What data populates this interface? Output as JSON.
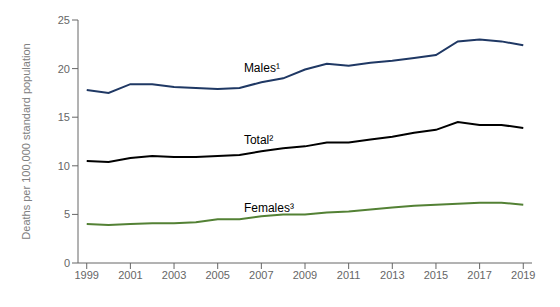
{
  "chart_data": {
    "type": "line",
    "y_label": "Deaths per 100,000 standard population",
    "x": [
      1999,
      2000,
      2001,
      2002,
      2003,
      2004,
      2005,
      2006,
      2007,
      2008,
      2009,
      2010,
      2011,
      2012,
      2013,
      2014,
      2015,
      2016,
      2017,
      2018,
      2019
    ],
    "series": [
      {
        "name": "Males¹",
        "color": "#1f3864",
        "values": [
          17.8,
          17.5,
          18.4,
          18.4,
          18.1,
          18.0,
          17.9,
          18.0,
          18.6,
          19.0,
          19.9,
          20.5,
          20.3,
          20.6,
          20.8,
          21.1,
          21.4,
          22.8,
          23.0,
          22.8,
          22.4
        ]
      },
      {
        "name": "Total²",
        "color": "#000000",
        "values": [
          10.5,
          10.4,
          10.8,
          11.0,
          10.9,
          10.9,
          11.0,
          11.1,
          11.5,
          11.8,
          12.0,
          12.4,
          12.4,
          12.7,
          13.0,
          13.4,
          13.7,
          14.5,
          14.2,
          14.2,
          13.9
        ]
      },
      {
        "name": "Females³",
        "color": "#538135",
        "values": [
          4.0,
          3.9,
          4.0,
          4.1,
          4.1,
          4.2,
          4.5,
          4.5,
          4.8,
          5.0,
          5.0,
          5.2,
          5.3,
          5.5,
          5.7,
          5.9,
          6.0,
          6.1,
          6.2,
          6.2,
          6.0
        ]
      }
    ],
    "annotations": [
      {
        "text": "Males¹",
        "x": 2006.2,
        "y": 19.6
      },
      {
        "text": "Total²",
        "x": 2006.2,
        "y": 12.2
      },
      {
        "text": "Females³",
        "x": 2006.2,
        "y": 5.2
      }
    ],
    "xlim": [
      1998.6,
      2019.4
    ],
    "xticks": [
      1999,
      2001,
      2003,
      2005,
      2007,
      2009,
      2011,
      2013,
      2015,
      2017,
      2019
    ],
    "ylim": [
      0,
      25
    ],
    "yticks": [
      0,
      5,
      10,
      15,
      20,
      25
    ],
    "grid": false
  }
}
